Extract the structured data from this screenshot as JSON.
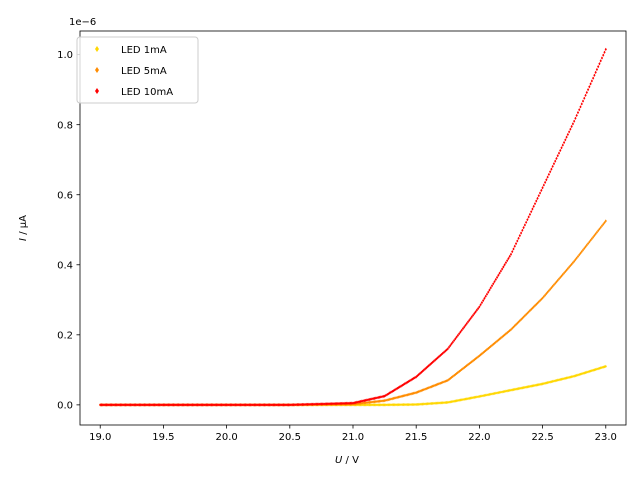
{
  "chart_data": {
    "type": "scatter",
    "title": "",
    "xlabel_var": "U",
    "xlabel_unit": " / V",
    "ylabel_var": "I",
    "ylabel_unit": " / µA",
    "y_offset_text": "1e−6",
    "xlim": [
      18.84,
      23.16
    ],
    "ylim": [
      -5.75e-08,
      1.0675e-06
    ],
    "x_ticks": [
      19.0,
      19.5,
      20.0,
      20.5,
      21.0,
      21.5,
      22.0,
      22.5,
      23.0
    ],
    "x_tick_labels": [
      "19.0",
      "19.5",
      "20.0",
      "20.5",
      "21.0",
      "21.5",
      "22.0",
      "22.5",
      "23.0"
    ],
    "y_ticks": [
      0.0,
      2e-07,
      4e-07,
      6e-07,
      8e-07,
      1e-06
    ],
    "y_tick_labels": [
      "0.0",
      "0.2",
      "0.4",
      "0.6",
      "0.8",
      "1.0"
    ],
    "grid": false,
    "legend_position": "top-left",
    "series": [
      {
        "name": "LED 1mA",
        "color": "#ffd700",
        "x": [
          19.0,
          19.5,
          20.0,
          20.5,
          21.0,
          21.25,
          21.5,
          21.75,
          22.0,
          22.25,
          22.5,
          22.75,
          23.0
        ],
        "y": [
          0.0,
          0.0,
          0.0,
          0.0,
          0.0,
          0.0,
          1e-09,
          7e-09,
          2.4e-08,
          4.2e-08,
          6e-08,
          8.2e-08,
          1.1e-07
        ]
      },
      {
        "name": "LED 5mA",
        "color": "#ff8c00",
        "x": [
          19.0,
          19.5,
          20.0,
          20.5,
          21.0,
          21.25,
          21.5,
          21.75,
          22.0,
          22.25,
          22.5,
          22.75,
          23.0
        ],
        "y": [
          0.0,
          0.0,
          0.0,
          0.0,
          2e-09,
          1.2e-08,
          3.5e-08,
          7e-08,
          1.4e-07,
          2.15e-07,
          3.05e-07,
          4.1e-07,
          5.25e-07
        ]
      },
      {
        "name": "LED 10mA",
        "color": "#ff0000",
        "x": [
          19.0,
          19.5,
          20.0,
          20.5,
          21.0,
          21.25,
          21.5,
          21.75,
          22.0,
          22.25,
          22.5,
          22.75,
          23.0
        ],
        "y": [
          0.0,
          0.0,
          0.0,
          0.0,
          5e-09,
          2.5e-08,
          8e-08,
          1.6e-07,
          2.8e-07,
          4.3e-07,
          6.2e-07,
          8.1e-07,
          1.015e-06
        ]
      }
    ]
  }
}
